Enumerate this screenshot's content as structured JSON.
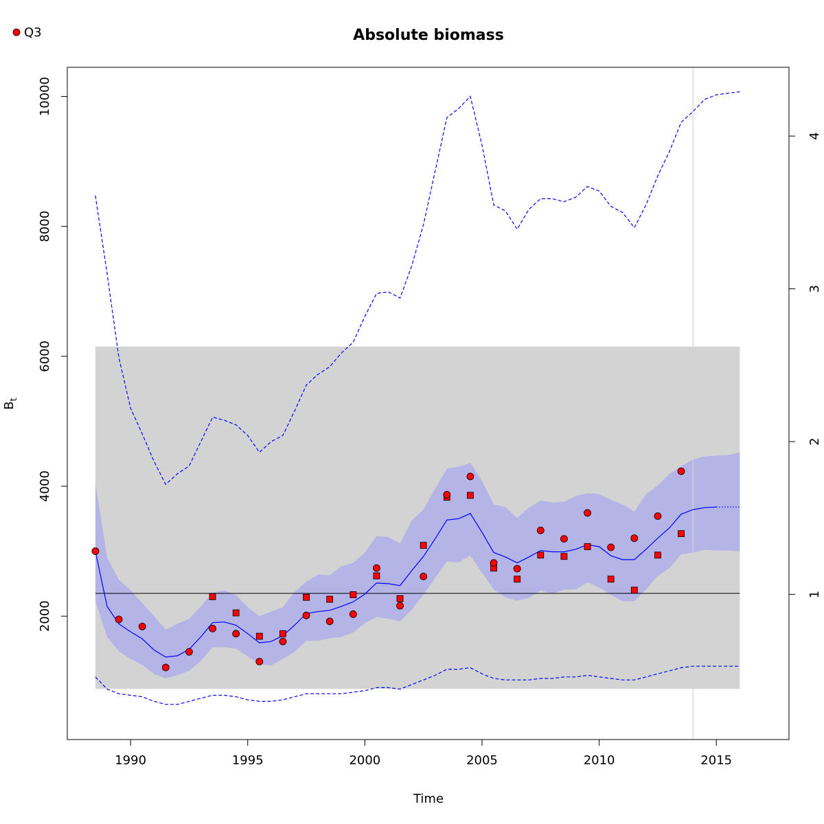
{
  "chart_data": {
    "type": "line",
    "title": "Absolute biomass",
    "xlabel": "Time",
    "ylabel": "B",
    "ylabel_subscript": "t",
    "xlim": [
      1987.3,
      2018.1
    ],
    "ylim": [
      100,
      10450
    ],
    "x_ticks": [
      1990,
      1995,
      2000,
      2005,
      2010,
      2015
    ],
    "y_ticks": [
      2000,
      4000,
      6000,
      8000,
      10000
    ],
    "right_axis": {
      "lim": [
        0.05,
        4.45
      ],
      "ticks": [
        1,
        2,
        3,
        4
      ]
    },
    "legend": {
      "position": "top-left",
      "entries": [
        {
          "label": "Q3",
          "color": "#ff0000",
          "marker": "circle"
        }
      ]
    },
    "colors": {
      "line": "#0000ff",
      "ci_fill": "#b4b4e6",
      "gray_band": "#d3d3d3",
      "points": "#ff0000",
      "vline": "#d3d3d3",
      "hline": "#000000"
    },
    "gray_band": {
      "x": [
        1988.5,
        2016.0
      ],
      "y": [
        880,
        6150
      ]
    },
    "hline": 2350,
    "vline": 2014.0,
    "series": [
      {
        "role": "estimate",
        "style": "solid",
        "x": [
          1988.5,
          1989.0,
          1989.5,
          1990.0,
          1990.5,
          1991.0,
          1991.5,
          1992.0,
          1992.5,
          1993.0,
          1993.5,
          1994.0,
          1994.5,
          1995.0,
          1995.5,
          1996.0,
          1996.5,
          1997.0,
          1997.5,
          1998.0,
          1998.5,
          1999.0,
          1999.5,
          2000.0,
          2000.5,
          2001.0,
          2001.5,
          2002.0,
          2002.5,
          2003.0,
          2003.5,
          2004.0,
          2004.5,
          2005.0,
          2005.5,
          2006.0,
          2006.5,
          2007.0,
          2007.5,
          2008.0,
          2008.5,
          2009.0,
          2009.5,
          2010.0,
          2010.5,
          2011.0,
          2011.5,
          2012.0,
          2012.5,
          2013.0,
          2013.5,
          2014.0,
          2014.5,
          2015.0
        ],
        "y": [
          3000,
          2150,
          1880,
          1760,
          1650,
          1480,
          1370,
          1390,
          1490,
          1680,
          1900,
          1910,
          1860,
          1730,
          1590,
          1610,
          1700,
          1860,
          2040,
          2070,
          2090,
          2150,
          2220,
          2340,
          2510,
          2500,
          2470,
          2700,
          2920,
          3190,
          3480,
          3500,
          3580,
          3290,
          2980,
          2910,
          2820,
          2910,
          3010,
          2990,
          2990,
          3030,
          3100,
          3070,
          2930,
          2870,
          2870,
          3030,
          3200,
          3360,
          3570,
          3640,
          3670,
          3680
        ]
      },
      {
        "role": "projection",
        "style": "dotted",
        "x": [
          2015.0,
          2015.5,
          2016.0
        ],
        "y": [
          3680,
          3680,
          3680
        ]
      },
      {
        "role": "ci_upper",
        "style": "band",
        "x": [
          1988.5,
          1989.0,
          1989.5,
          1990.0,
          1990.5,
          1991.0,
          1991.5,
          1992.0,
          1992.5,
          1993.0,
          1993.5,
          1994.0,
          1994.5,
          1995.0,
          1995.5,
          1996.0,
          1996.5,
          1997.0,
          1997.5,
          1998.0,
          1998.5,
          1999.0,
          1999.5,
          2000.0,
          2000.5,
          2001.0,
          2001.5,
          2002.0,
          2002.5,
          2003.0,
          2003.5,
          2004.0,
          2004.5,
          2005.0,
          2005.5,
          2006.0,
          2006.5,
          2007.0,
          2007.5,
          2008.0,
          2008.5,
          2009.0,
          2009.5,
          2010.0,
          2010.5,
          2011.0,
          2011.5,
          2012.0,
          2012.5,
          2013.0,
          2013.5,
          2014.0,
          2014.5,
          2015.0,
          2015.5,
          2016.0
        ],
        "y": [
          4050,
          2900,
          2560,
          2400,
          2200,
          2000,
          1790,
          1880,
          1960,
          2150,
          2360,
          2400,
          2320,
          2140,
          2000,
          2070,
          2140,
          2370,
          2530,
          2640,
          2630,
          2770,
          2820,
          2980,
          3230,
          3220,
          3120,
          3470,
          3640,
          3960,
          4270,
          4300,
          4360,
          4080,
          3720,
          3680,
          3510,
          3670,
          3780,
          3750,
          3760,
          3850,
          3890,
          3880,
          3790,
          3720,
          3610,
          3880,
          4010,
          4190,
          4310,
          4410,
          4460,
          4470,
          4480,
          4520
        ]
      },
      {
        "role": "ci_lower",
        "style": "band",
        "x": [
          1988.5,
          1989.0,
          1989.5,
          1990.0,
          1990.5,
          1991.0,
          1991.5,
          1992.0,
          1992.5,
          1993.0,
          1993.5,
          1994.0,
          1994.5,
          1995.0,
          1995.5,
          1996.0,
          1996.5,
          1997.0,
          1997.5,
          1998.0,
          1998.5,
          1999.0,
          1999.5,
          2000.0,
          2000.5,
          2001.0,
          2001.5,
          2002.0,
          2002.5,
          2003.0,
          2003.5,
          2004.0,
          2004.5,
          2005.0,
          2005.5,
          2006.0,
          2006.5,
          2007.0,
          2007.5,
          2008.0,
          2008.5,
          2009.0,
          2009.5,
          2010.0,
          2010.5,
          2011.0,
          2011.5,
          2012.0,
          2012.5,
          2013.0,
          2013.5,
          2014.0,
          2014.5,
          2015.0,
          2015.5,
          2016.0
        ],
        "y": [
          2230,
          1680,
          1460,
          1340,
          1250,
          1110,
          1040,
          1090,
          1160,
          1310,
          1520,
          1520,
          1500,
          1380,
          1260,
          1240,
          1340,
          1450,
          1620,
          1620,
          1660,
          1680,
          1750,
          1890,
          1990,
          1960,
          1920,
          2100,
          2330,
          2590,
          2840,
          2830,
          2930,
          2670,
          2410,
          2290,
          2240,
          2280,
          2400,
          2340,
          2410,
          2410,
          2520,
          2440,
          2330,
          2230,
          2230,
          2410,
          2620,
          2740,
          2950,
          2980,
          3020,
          3010,
          3010,
          3000
        ]
      },
      {
        "role": "fmsy_upper",
        "style": "dashed",
        "axis": "right",
        "x": [
          1988.5,
          1989.0,
          1989.5,
          1990.0,
          1990.5,
          1991.0,
          1991.5,
          1992.0,
          1992.5,
          1993.0,
          1993.5,
          1994.0,
          1994.5,
          1995.0,
          1995.5,
          1996.0,
          1996.5,
          1997.0,
          1997.5,
          1998.0,
          1998.5,
          1999.0,
          1999.5,
          2000.0,
          2000.5,
          2001.0,
          2001.5,
          2002.0,
          2002.5,
          2003.0,
          2003.5,
          2004.0,
          2004.5,
          2005.0,
          2005.5,
          2006.0,
          2006.5,
          2007.0,
          2007.5,
          2008.0,
          2008.5,
          2009.0,
          2009.5,
          2010.0,
          2010.5,
          2011.0,
          2011.5,
          2012.0,
          2012.5,
          2013.0,
          2013.5,
          2014.0,
          2014.5,
          2015.0,
          2015.5,
          2016.0
        ],
        "y": [
          3.61,
          3.1,
          2.55,
          2.22,
          2.05,
          1.87,
          1.72,
          1.79,
          1.84,
          2.0,
          2.16,
          2.14,
          2.11,
          2.04,
          1.93,
          2.0,
          2.04,
          2.2,
          2.37,
          2.44,
          2.49,
          2.58,
          2.65,
          2.82,
          2.97,
          2.98,
          2.94,
          3.15,
          3.42,
          3.77,
          4.12,
          4.18,
          4.26,
          3.94,
          3.55,
          3.51,
          3.39,
          3.52,
          3.59,
          3.59,
          3.57,
          3.6,
          3.67,
          3.64,
          3.54,
          3.5,
          3.4,
          3.55,
          3.74,
          3.9,
          4.09,
          4.16,
          4.24,
          4.27,
          4.28,
          4.29
        ]
      },
      {
        "role": "fmsy_lower",
        "style": "dashed",
        "axis": "right",
        "x": [
          1988.5,
          1989.0,
          1989.5,
          1990.0,
          1990.5,
          1991.0,
          1991.5,
          1992.0,
          1992.5,
          1993.0,
          1993.5,
          1994.0,
          1994.5,
          1995.0,
          1995.5,
          1996.0,
          1996.5,
          1997.0,
          1997.5,
          1998.0,
          1998.5,
          1999.0,
          1999.5,
          2000.0,
          2000.5,
          2001.0,
          2001.5,
          2002.0,
          2002.5,
          2003.0,
          2003.5,
          2004.0,
          2004.5,
          2005.0,
          2005.5,
          2006.0,
          2006.5,
          2007.0,
          2007.5,
          2008.0,
          2008.5,
          2009.0,
          2009.5,
          2010.0,
          2010.5,
          2011.0,
          2011.5,
          2012.0,
          2012.5,
          2013.0,
          2013.5,
          2014.0,
          2014.5,
          2015.0,
          2015.5,
          2016.0
        ],
        "y": [
          0.46,
          0.38,
          0.35,
          0.34,
          0.33,
          0.3,
          0.28,
          0.28,
          0.3,
          0.32,
          0.34,
          0.34,
          0.33,
          0.31,
          0.3,
          0.3,
          0.31,
          0.33,
          0.35,
          0.35,
          0.35,
          0.35,
          0.36,
          0.37,
          0.39,
          0.39,
          0.38,
          0.41,
          0.44,
          0.47,
          0.51,
          0.51,
          0.52,
          0.48,
          0.45,
          0.44,
          0.44,
          0.44,
          0.45,
          0.45,
          0.46,
          0.46,
          0.47,
          0.46,
          0.45,
          0.44,
          0.44,
          0.46,
          0.48,
          0.5,
          0.52,
          0.53,
          0.53,
          0.53,
          0.53,
          0.53
        ]
      }
    ],
    "points_circle": {
      "name": "Q3",
      "x": [
        1988.5,
        1989.5,
        1990.5,
        1991.5,
        1992.5,
        1993.5,
        1994.5,
        1995.5,
        1996.5,
        1997.5,
        1998.5,
        1999.5,
        2000.5,
        2001.5,
        2002.5,
        2003.5,
        2004.5,
        2005.5,
        2006.5,
        2007.5,
        2008.5,
        2009.5,
        2010.5,
        2011.5,
        2012.5,
        2013.5
      ],
      "y": [
        3000,
        1950,
        1840,
        1210,
        1450,
        1810,
        1730,
        1300,
        1610,
        2010,
        1920,
        2030,
        2740,
        2160,
        2610,
        3870,
        4150,
        2820,
        2730,
        3320,
        3190,
        3590,
        3060,
        3200,
        3540,
        4230
      ]
    },
    "points_square": {
      "x": [
        1993.5,
        1994.5,
        1995.5,
        1996.5,
        1997.5,
        1998.5,
        1999.5,
        2000.5,
        2001.5,
        2002.5,
        2003.5,
        2004.5,
        2005.5,
        2006.5,
        2007.5,
        2008.5,
        2009.5,
        2010.5,
        2011.5,
        2012.5,
        2013.5
      ],
      "y": [
        2300,
        2050,
        1690,
        1730,
        2290,
        2260,
        2330,
        2620,
        2270,
        3090,
        3830,
        3860,
        2740,
        2570,
        2940,
        2920,
        3070,
        2570,
        2400,
        2940,
        3270
      ]
    }
  }
}
